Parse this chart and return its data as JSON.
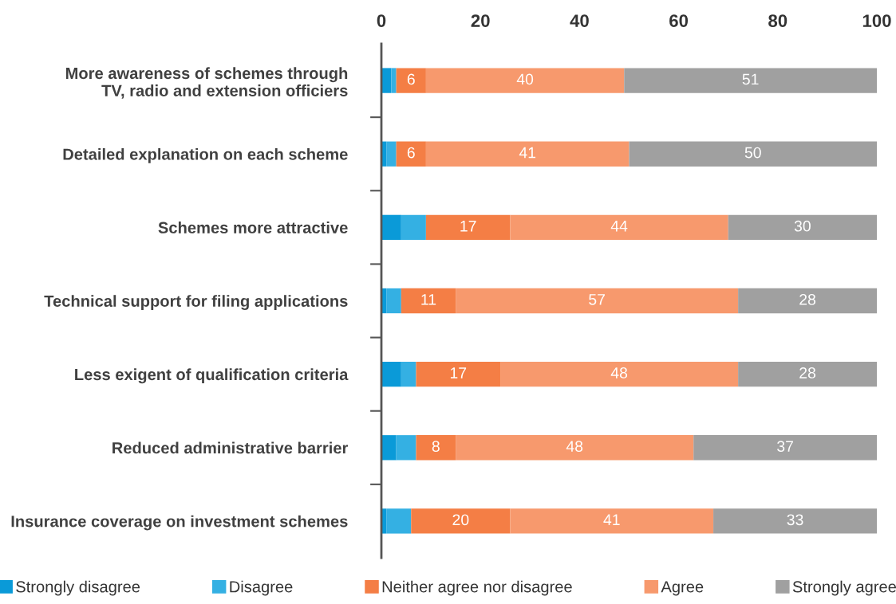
{
  "chart_data": {
    "type": "bar",
    "orientation": "horizontal",
    "stacked": true,
    "categories": [
      "More awareness of schemes through\nTV, radio and extension officiers",
      "Detailed explanation on each scheme",
      "Schemes more attractive",
      "Technical support for filing applications",
      "Less exigent of qualification criteria",
      "Reduced administrative barrier",
      "Insurance coverage on investment schemes"
    ],
    "series": [
      {
        "name": "Strongly disagree",
        "color": "#0a9ad8",
        "values": [
          2,
          1,
          4,
          1,
          4,
          3,
          1
        ]
      },
      {
        "name": "Disagree",
        "color": "#34b0e3",
        "values": [
          1,
          2,
          5,
          3,
          3,
          4,
          5
        ]
      },
      {
        "name": "Neither agree nor disagree",
        "color": "#f47e45",
        "values": [
          6,
          6,
          17,
          11,
          17,
          8,
          20
        ],
        "value_labels": [
          "6",
          "6",
          "17",
          "11",
          "17",
          "8",
          "20"
        ]
      },
      {
        "name": "Agree",
        "color": "#f7996d",
        "values": [
          40,
          41,
          44,
          57,
          48,
          48,
          41
        ],
        "value_labels": [
          "40",
          "41",
          "44",
          "57",
          "48",
          "48",
          "41"
        ]
      },
      {
        "name": "Strongly agree",
        "color": "#a0a0a0",
        "values": [
          51,
          50,
          30,
          28,
          28,
          37,
          33
        ],
        "value_labels": [
          "51",
          "50",
          "30",
          "28",
          "28",
          "37",
          "33"
        ]
      }
    ],
    "xlim": [
      0,
      100
    ],
    "xticks": [
      0,
      20,
      40,
      60,
      80,
      100
    ],
    "grid": false,
    "legend": "bottom"
  }
}
